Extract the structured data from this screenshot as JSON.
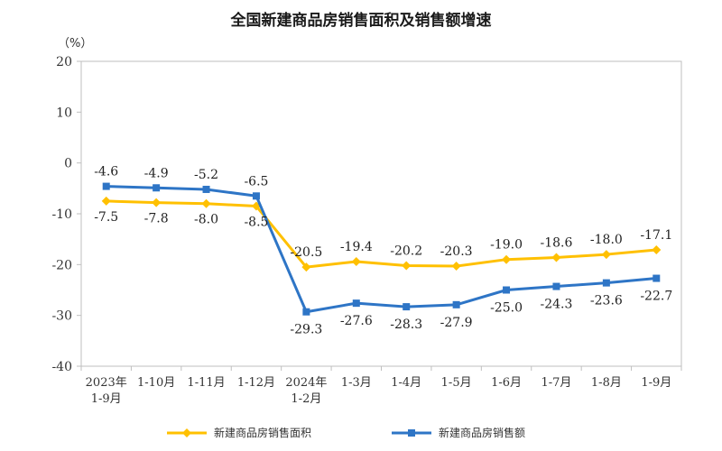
{
  "title": "全国新建商品房销售面积及销售额增速",
  "chart_data": {
    "type": "line",
    "title": "全国新建商品房销售面积及销售额增速",
    "unit": "（%）",
    "ylim": [
      -40,
      20
    ],
    "yticks": [
      20,
      10,
      0,
      -10,
      -20,
      -30,
      -40
    ],
    "categories": [
      [
        "2023年",
        "1-9月"
      ],
      [
        "1-10月"
      ],
      [
        "1-11月"
      ],
      [
        "1-12月"
      ],
      [
        "2024年",
        "1-2月"
      ],
      [
        "1-3月"
      ],
      [
        "1-4月"
      ],
      [
        "1-5月"
      ],
      [
        "1-6月"
      ],
      [
        "1-7月"
      ],
      [
        "1-8月"
      ],
      [
        "1-9月"
      ]
    ],
    "series": [
      {
        "name": "新建商品房销售面积",
        "color": "#FFC000",
        "marker": "diamond",
        "values": [
          -7.5,
          -7.8,
          -8.0,
          -8.5,
          -20.5,
          -19.4,
          -20.2,
          -20.3,
          -19.0,
          -18.6,
          -18.0,
          -17.1
        ],
        "labels": [
          "-7.5",
          "-7.8",
          "-8.0",
          "-8.5",
          "-20.5",
          "-19.4",
          "-20.2",
          "-20.3",
          "-19.0",
          "-18.6",
          "-18.0",
          "-17.1"
        ]
      },
      {
        "name": "新建商品房销售额",
        "color": "#2E75C6",
        "marker": "square",
        "values": [
          -4.6,
          -4.9,
          -5.2,
          -6.5,
          -29.3,
          -27.6,
          -28.3,
          -27.9,
          -25.0,
          -24.3,
          -23.6,
          -22.7
        ],
        "labels": [
          "-4.6",
          "-4.9",
          "-5.2",
          "-6.5",
          "-29.3",
          "-27.6",
          "-28.3",
          "-27.9",
          "-25.0",
          "-24.3",
          "-23.6",
          "-22.7"
        ]
      }
    ],
    "legend": "bottom"
  }
}
